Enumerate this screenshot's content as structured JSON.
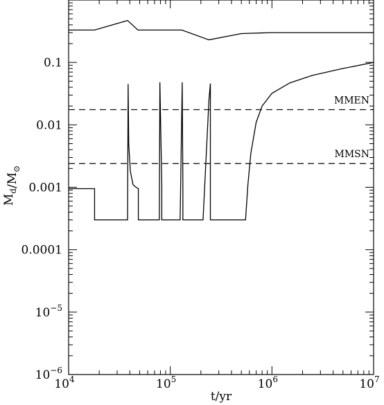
{
  "chart_data": {
    "type": "line",
    "xlabel": "t/yr",
    "ylabel": "M_d/M_⊙",
    "xscale": "log",
    "yscale": "log",
    "xlim": [
      10000,
      10000000
    ],
    "ylim": [
      1e-06,
      1
    ],
    "xticks": [
      {
        "value": 10000,
        "base": "10",
        "exp": "4"
      },
      {
        "value": 100000,
        "base": "10",
        "exp": "5"
      },
      {
        "value": 1000000,
        "base": "10",
        "exp": "6"
      },
      {
        "value": 10000000,
        "base": "10",
        "exp": "7"
      }
    ],
    "yticks": [
      {
        "value": 0.1,
        "label": "0.1",
        "base": "",
        "exp": ""
      },
      {
        "value": 0.01,
        "label": "0.01",
        "base": "",
        "exp": ""
      },
      {
        "value": 0.001,
        "label": "0.001",
        "base": "",
        "exp": ""
      },
      {
        "value": 0.0001,
        "label": "0.0001",
        "base": "",
        "exp": ""
      },
      {
        "value": 1e-05,
        "label": "",
        "base": "10",
        "exp": "−5"
      },
      {
        "value": 1e-06,
        "label": "",
        "base": "10",
        "exp": "−6"
      }
    ],
    "reference_lines": [
      {
        "name": "MMEN",
        "y": 0.0175,
        "style": "dashed"
      },
      {
        "name": "MMSN",
        "y": 0.0024,
        "style": "dashed"
      }
    ],
    "series": [
      {
        "x": [
          10000,
          18000,
          38000,
          48000,
          80000,
          130000,
          240000,
          500000,
          1000000,
          3000000,
          10000000
        ],
        "y": [
          0.33,
          0.33,
          0.47,
          0.33,
          0.33,
          0.33,
          0.23,
          0.29,
          0.3,
          0.3,
          0.3
        ]
      },
      {
        "x": [
          10000,
          18000,
          18000,
          38000,
          38500,
          39000,
          40500,
          43000,
          46000,
          48500,
          48500,
          78000,
          79000,
          82500,
          82500,
          125000,
          131000,
          133000,
          133000,
          210000,
          240000,
          248000,
          248000,
          550000,
          580000,
          620000,
          700000,
          800000,
          1000000,
          1500000,
          2500000,
          5000000,
          10000000
        ],
        "y": [
          0.00095,
          0.00095,
          0.0003,
          0.0003,
          0.045,
          0.005,
          0.0018,
          0.0011,
          0.001,
          0.00095,
          0.0003,
          0.0003,
          0.048,
          0.0011,
          0.0003,
          0.0003,
          0.048,
          0.0011,
          0.0003,
          0.0003,
          0.025,
          0.046,
          0.0003,
          0.0003,
          0.0011,
          0.0035,
          0.011,
          0.02,
          0.032,
          0.047,
          0.062,
          0.08,
          0.1
        ]
      }
    ]
  }
}
